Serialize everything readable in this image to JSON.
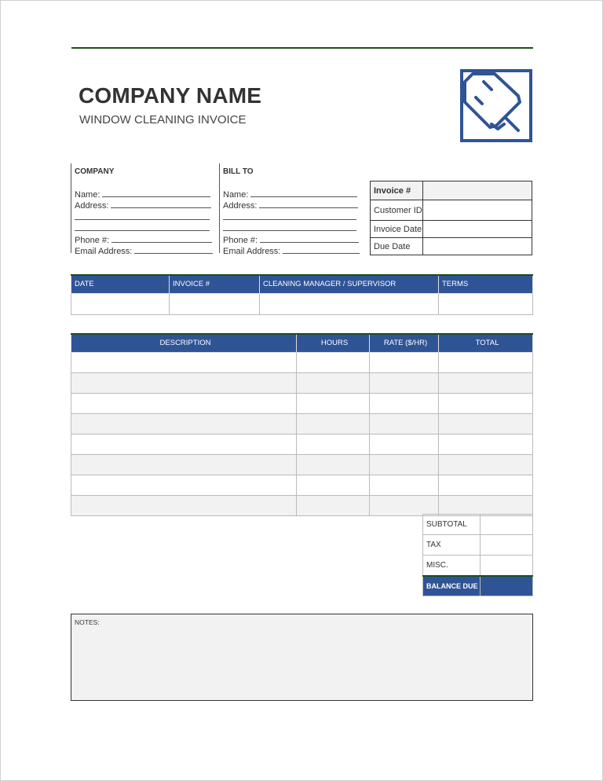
{
  "header": {
    "company_name": "COMPANY NAME",
    "subtitle": "WINDOW CLEANING INVOICE"
  },
  "logo": {
    "icon": "squeegee-window-icon",
    "color": "#2f5496"
  },
  "company": {
    "heading": "COMPANY",
    "name_label": "Name:",
    "address_label": "Address:",
    "phone_label": "Phone #:",
    "email_label": "Email Address:"
  },
  "bill_to": {
    "heading": "BILL TO",
    "name_label": "Name:",
    "address_label": "Address:",
    "phone_label": "Phone #:",
    "email_label": "Email Address:"
  },
  "invoice_info": [
    {
      "label": "Invoice #",
      "value": ""
    },
    {
      "label": "Customer ID",
      "value": ""
    },
    {
      "label": "Invoice Date",
      "value": ""
    },
    {
      "label": "Due Date",
      "value": ""
    }
  ],
  "info_table": {
    "headers": [
      "DATE",
      "INVOICE #",
      "CLEANING MANAGER / SUPERVISOR",
      "TERMS"
    ],
    "row": [
      "",
      "",
      "",
      ""
    ]
  },
  "items_table": {
    "headers": [
      "DESCRIPTION",
      "HOURS",
      "RATE ($/HR)",
      "TOTAL"
    ],
    "rows": [
      [
        "",
        "",
        "",
        ""
      ],
      [
        "",
        "",
        "",
        ""
      ],
      [
        "",
        "",
        "",
        ""
      ],
      [
        "",
        "",
        "",
        ""
      ],
      [
        "",
        "",
        "",
        ""
      ],
      [
        "",
        "",
        "",
        ""
      ],
      [
        "",
        "",
        "",
        ""
      ],
      [
        "",
        "",
        "",
        ""
      ]
    ]
  },
  "totals": [
    {
      "label": "SUBTOTAL",
      "value": ""
    },
    {
      "label": "TAX",
      "value": ""
    },
    {
      "label": "MISC.",
      "value": ""
    },
    {
      "label": "BALANCE DUE",
      "value": ""
    }
  ],
  "notes": {
    "label": "NOTES:"
  },
  "colors": {
    "accent": "#2f5496",
    "rule": "#1e4d1e",
    "shade": "#f2f2f2"
  }
}
